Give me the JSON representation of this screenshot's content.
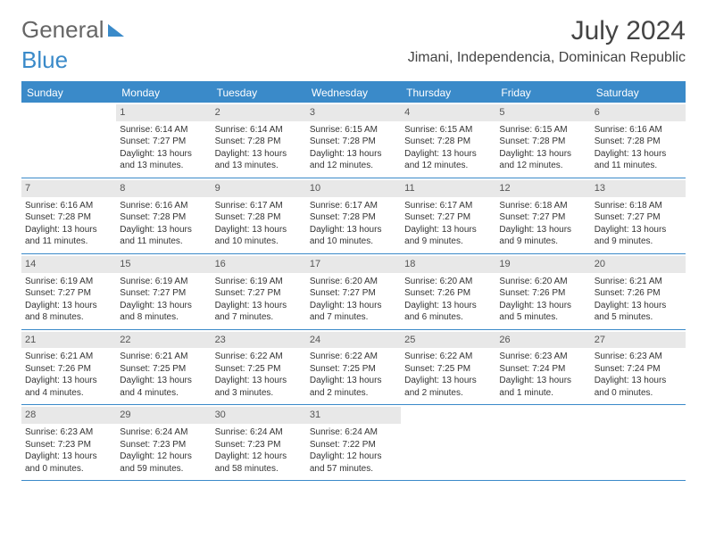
{
  "logo": {
    "part1": "General",
    "part2": "Blue"
  },
  "title": "July 2024",
  "location": "Jimani, Independencia, Dominican Republic",
  "day_headers": [
    "Sunday",
    "Monday",
    "Tuesday",
    "Wednesday",
    "Thursday",
    "Friday",
    "Saturday"
  ],
  "colors": {
    "accent": "#3a8ac9",
    "header_bg": "#3a8ac9",
    "header_fg": "#ffffff",
    "daynum_bg": "#e8e8e8",
    "text": "#333333"
  },
  "weeks": [
    [
      null,
      {
        "n": "1",
        "sr": "Sunrise: 6:14 AM",
        "ss": "Sunset: 7:27 PM",
        "dl": "Daylight: 13 hours and 13 minutes."
      },
      {
        "n": "2",
        "sr": "Sunrise: 6:14 AM",
        "ss": "Sunset: 7:28 PM",
        "dl": "Daylight: 13 hours and 13 minutes."
      },
      {
        "n": "3",
        "sr": "Sunrise: 6:15 AM",
        "ss": "Sunset: 7:28 PM",
        "dl": "Daylight: 13 hours and 12 minutes."
      },
      {
        "n": "4",
        "sr": "Sunrise: 6:15 AM",
        "ss": "Sunset: 7:28 PM",
        "dl": "Daylight: 13 hours and 12 minutes."
      },
      {
        "n": "5",
        "sr": "Sunrise: 6:15 AM",
        "ss": "Sunset: 7:28 PM",
        "dl": "Daylight: 13 hours and 12 minutes."
      },
      {
        "n": "6",
        "sr": "Sunrise: 6:16 AM",
        "ss": "Sunset: 7:28 PM",
        "dl": "Daylight: 13 hours and 11 minutes."
      }
    ],
    [
      {
        "n": "7",
        "sr": "Sunrise: 6:16 AM",
        "ss": "Sunset: 7:28 PM",
        "dl": "Daylight: 13 hours and 11 minutes."
      },
      {
        "n": "8",
        "sr": "Sunrise: 6:16 AM",
        "ss": "Sunset: 7:28 PM",
        "dl": "Daylight: 13 hours and 11 minutes."
      },
      {
        "n": "9",
        "sr": "Sunrise: 6:17 AM",
        "ss": "Sunset: 7:28 PM",
        "dl": "Daylight: 13 hours and 10 minutes."
      },
      {
        "n": "10",
        "sr": "Sunrise: 6:17 AM",
        "ss": "Sunset: 7:28 PM",
        "dl": "Daylight: 13 hours and 10 minutes."
      },
      {
        "n": "11",
        "sr": "Sunrise: 6:17 AM",
        "ss": "Sunset: 7:27 PM",
        "dl": "Daylight: 13 hours and 9 minutes."
      },
      {
        "n": "12",
        "sr": "Sunrise: 6:18 AM",
        "ss": "Sunset: 7:27 PM",
        "dl": "Daylight: 13 hours and 9 minutes."
      },
      {
        "n": "13",
        "sr": "Sunrise: 6:18 AM",
        "ss": "Sunset: 7:27 PM",
        "dl": "Daylight: 13 hours and 9 minutes."
      }
    ],
    [
      {
        "n": "14",
        "sr": "Sunrise: 6:19 AM",
        "ss": "Sunset: 7:27 PM",
        "dl": "Daylight: 13 hours and 8 minutes."
      },
      {
        "n": "15",
        "sr": "Sunrise: 6:19 AM",
        "ss": "Sunset: 7:27 PM",
        "dl": "Daylight: 13 hours and 8 minutes."
      },
      {
        "n": "16",
        "sr": "Sunrise: 6:19 AM",
        "ss": "Sunset: 7:27 PM",
        "dl": "Daylight: 13 hours and 7 minutes."
      },
      {
        "n": "17",
        "sr": "Sunrise: 6:20 AM",
        "ss": "Sunset: 7:27 PM",
        "dl": "Daylight: 13 hours and 7 minutes."
      },
      {
        "n": "18",
        "sr": "Sunrise: 6:20 AM",
        "ss": "Sunset: 7:26 PM",
        "dl": "Daylight: 13 hours and 6 minutes."
      },
      {
        "n": "19",
        "sr": "Sunrise: 6:20 AM",
        "ss": "Sunset: 7:26 PM",
        "dl": "Daylight: 13 hours and 5 minutes."
      },
      {
        "n": "20",
        "sr": "Sunrise: 6:21 AM",
        "ss": "Sunset: 7:26 PM",
        "dl": "Daylight: 13 hours and 5 minutes."
      }
    ],
    [
      {
        "n": "21",
        "sr": "Sunrise: 6:21 AM",
        "ss": "Sunset: 7:26 PM",
        "dl": "Daylight: 13 hours and 4 minutes."
      },
      {
        "n": "22",
        "sr": "Sunrise: 6:21 AM",
        "ss": "Sunset: 7:25 PM",
        "dl": "Daylight: 13 hours and 4 minutes."
      },
      {
        "n": "23",
        "sr": "Sunrise: 6:22 AM",
        "ss": "Sunset: 7:25 PM",
        "dl": "Daylight: 13 hours and 3 minutes."
      },
      {
        "n": "24",
        "sr": "Sunrise: 6:22 AM",
        "ss": "Sunset: 7:25 PM",
        "dl": "Daylight: 13 hours and 2 minutes."
      },
      {
        "n": "25",
        "sr": "Sunrise: 6:22 AM",
        "ss": "Sunset: 7:25 PM",
        "dl": "Daylight: 13 hours and 2 minutes."
      },
      {
        "n": "26",
        "sr": "Sunrise: 6:23 AM",
        "ss": "Sunset: 7:24 PM",
        "dl": "Daylight: 13 hours and 1 minute."
      },
      {
        "n": "27",
        "sr": "Sunrise: 6:23 AM",
        "ss": "Sunset: 7:24 PM",
        "dl": "Daylight: 13 hours and 0 minutes."
      }
    ],
    [
      {
        "n": "28",
        "sr": "Sunrise: 6:23 AM",
        "ss": "Sunset: 7:23 PM",
        "dl": "Daylight: 13 hours and 0 minutes."
      },
      {
        "n": "29",
        "sr": "Sunrise: 6:24 AM",
        "ss": "Sunset: 7:23 PM",
        "dl": "Daylight: 12 hours and 59 minutes."
      },
      {
        "n": "30",
        "sr": "Sunrise: 6:24 AM",
        "ss": "Sunset: 7:23 PM",
        "dl": "Daylight: 12 hours and 58 minutes."
      },
      {
        "n": "31",
        "sr": "Sunrise: 6:24 AM",
        "ss": "Sunset: 7:22 PM",
        "dl": "Daylight: 12 hours and 57 minutes."
      },
      null,
      null,
      null
    ]
  ]
}
